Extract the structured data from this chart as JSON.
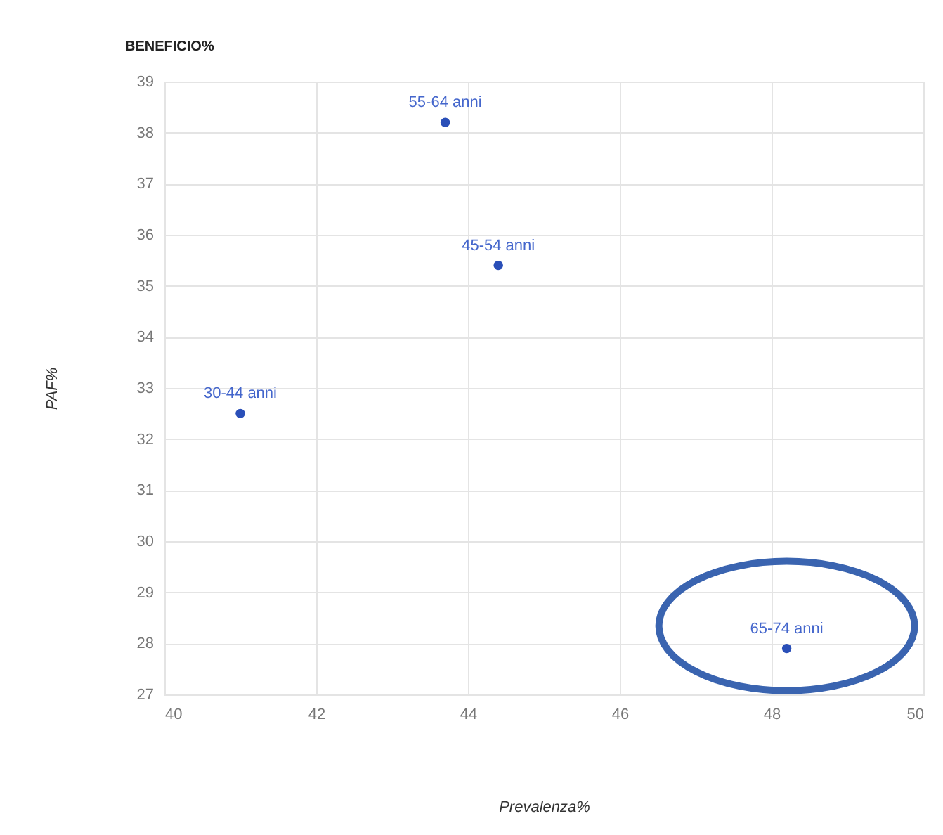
{
  "chart_data": {
    "type": "scatter",
    "title": "BENEFICIO%",
    "xlabel": "Prevalenza%",
    "ylabel": "PAF%",
    "x": [
      41,
      43.7,
      44.4,
      48.2
    ],
    "series": [
      {
        "color": "#2a4fb8",
        "values": [
          32.5,
          38.2,
          35.4,
          27.9
        ]
      }
    ],
    "annotations": [
      {
        "text": "30-44 anni",
        "x": 41,
        "y": 32.5
      },
      {
        "text": "55-64 anni",
        "x": 43.7,
        "y": 38.2
      },
      {
        "text": "45-54 anni",
        "x": 44.4,
        "y": 35.4
      },
      {
        "text": "65-74 anni",
        "x": 48.2,
        "y": 27.9
      }
    ],
    "xlim": [
      40,
      50
    ],
    "xticks": [
      40,
      42,
      44,
      46,
      48,
      50
    ],
    "ylim": [
      27,
      39
    ],
    "yticks": [
      27,
      28,
      29,
      30,
      31,
      32,
      33,
      34,
      35,
      36,
      37,
      38,
      39
    ],
    "grid": true,
    "marker": "circle"
  }
}
